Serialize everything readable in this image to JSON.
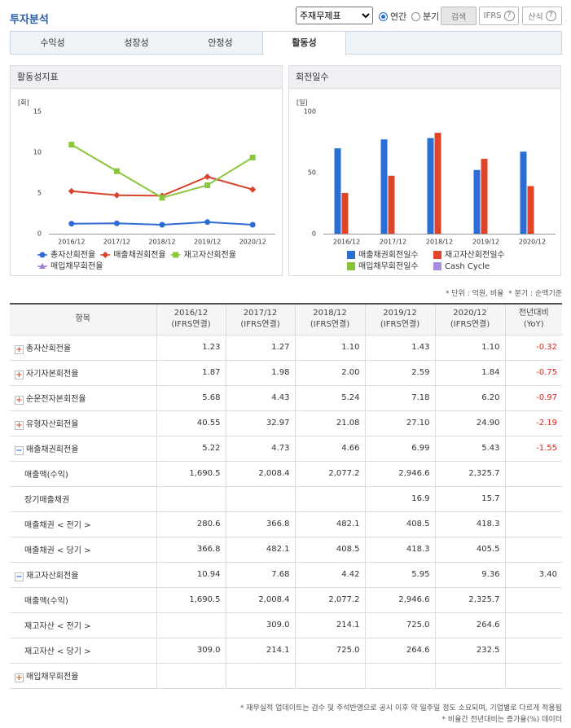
{
  "header": {
    "title": "투자분석",
    "select": "주재무제표",
    "radios": [
      "연간",
      "분기"
    ],
    "buttons": [
      "검색",
      "IFRS",
      "산식"
    ]
  },
  "tabs": {
    "items": [
      "수익성",
      "성장성",
      "안정성",
      "활동성"
    ],
    "active": 3
  },
  "chart_data": [
    {
      "type": "line",
      "title": "활동성지표",
      "unit": "[회]",
      "categories": [
        "2016/12",
        "2017/12",
        "2018/12",
        "2019/12",
        "2020/12"
      ],
      "ylim": [
        0,
        15
      ],
      "yticks": [
        0,
        5,
        10,
        15
      ],
      "grid": false,
      "series": [
        {
          "name": "총자산회전율",
          "color": "#2e6bd3",
          "marker": "circle",
          "values": [
            1.23,
            1.27,
            1.1,
            1.43,
            1.1
          ]
        },
        {
          "name": "매출채권회전율",
          "color": "#d8432b",
          "marker": "diamond",
          "values": [
            5.22,
            4.73,
            4.66,
            6.99,
            5.43
          ]
        },
        {
          "name": "재고자산회전율",
          "color": "#8cc63f",
          "marker": "square",
          "values": [
            10.94,
            7.68,
            4.42,
            5.95,
            9.36
          ]
        },
        {
          "name": "매입채무회전율",
          "color": "#a07fd8",
          "marker": "triangle",
          "values": [
            null,
            null,
            null,
            null,
            null
          ]
        }
      ]
    },
    {
      "type": "bar",
      "title": "회전일수",
      "unit": "[일]",
      "categories": [
        "2016/12",
        "2017/12",
        "2018/12",
        "2019/12",
        "2020/12"
      ],
      "ylim": [
        0,
        100
      ],
      "yticks": [
        0,
        50,
        100
      ],
      "grid": false,
      "series": [
        {
          "name": "매출채권회전일수",
          "color": "#2b6fd6",
          "values": [
            69.9,
            77.2,
            78.3,
            52.2,
            67.2
          ]
        },
        {
          "name": "재고자산회전일수",
          "color": "#e0452a",
          "values": [
            33.4,
            47.5,
            82.6,
            61.3,
            39.0
          ]
        },
        {
          "name": "매입채무회전일수",
          "color": "#86c232",
          "values": [
            null,
            null,
            null,
            null,
            null
          ]
        },
        {
          "name": "Cash Cycle",
          "color": "#a68be0",
          "values": [
            null,
            null,
            null,
            null,
            null
          ]
        }
      ]
    }
  ],
  "notes": [
    "* 단위 : 억원, 비율",
    "* 분기 : 순액기준"
  ],
  "table": {
    "item_header": "항목",
    "columns": [
      {
        "label": "2016/12",
        "sub": "(IFRS연결)"
      },
      {
        "label": "2017/12",
        "sub": "(IFRS연결)"
      },
      {
        "label": "2018/12",
        "sub": "(IFRS연결)"
      },
      {
        "label": "2019/12",
        "sub": "(IFRS연결)"
      },
      {
        "label": "2020/12",
        "sub": "(IFRS연결)"
      },
      {
        "label": "전년대비",
        "sub": "(YoY)"
      }
    ],
    "rows": [
      {
        "label": "총자산회전율",
        "icon": "plus",
        "values": [
          "1.23",
          "1.27",
          "1.10",
          "1.43",
          "1.10"
        ],
        "yoy": "-0.32"
      },
      {
        "label": "자기자본회전율",
        "icon": "plus",
        "values": [
          "1.87",
          "1.98",
          "2.00",
          "2.59",
          "1.84"
        ],
        "yoy": "-0.75"
      },
      {
        "label": "순운전자본회전율",
        "icon": "plus",
        "values": [
          "5.68",
          "4.43",
          "5.24",
          "7.18",
          "6.20"
        ],
        "yoy": "-0.97"
      },
      {
        "label": "유형자산회전율",
        "icon": "plus",
        "values": [
          "40.55",
          "32.97",
          "21.08",
          "27.10",
          "24.90"
        ],
        "yoy": "-2.19"
      },
      {
        "label": "매출채권회전율",
        "icon": "minus",
        "values": [
          "5.22",
          "4.73",
          "4.66",
          "6.99",
          "5.43"
        ],
        "yoy": "-1.55"
      },
      {
        "label": "매출액(수익)",
        "values": [
          "1,690.5",
          "2,008.4",
          "2,077.2",
          "2,946.6",
          "2,325.7"
        ]
      },
      {
        "label": "장기매출채권",
        "values": [
          null,
          null,
          null,
          "16.9",
          "15.7"
        ]
      },
      {
        "label": "매출채권 < 전기 >",
        "values": [
          "280.6",
          "366.8",
          "482.1",
          "408.5",
          "418.3"
        ]
      },
      {
        "label": "매출채권 < 당기 >",
        "values": [
          "366.8",
          "482.1",
          "408.5",
          "418.3",
          "405.5"
        ]
      },
      {
        "label": "재고자산회전율",
        "icon": "minus",
        "values": [
          "10.94",
          "7.68",
          "4.42",
          "5.95",
          "9.36"
        ],
        "yoy": "3.40"
      },
      {
        "label": "매출액(수익)",
        "values": [
          "1,690.5",
          "2,008.4",
          "2,077.2",
          "2,946.6",
          "2,325.7"
        ]
      },
      {
        "label": "재고자산 < 전기 >",
        "values": [
          null,
          "309.0",
          "214.1",
          "725.0",
          "264.6"
        ]
      },
      {
        "label": "재고자산 < 당기 >",
        "values": [
          "309.0",
          "214.1",
          "725.0",
          "264.6",
          "232.5"
        ]
      },
      {
        "label": "매입채무회전율",
        "icon": "plus",
        "values": [
          null,
          null,
          null,
          null,
          null
        ]
      }
    ]
  },
  "footnotes": [
    "* 재무실적 업데이트는 검수 및 주석반영으로 공시 이후 약 일주일 정도 소요되며, 기업별로 다르게 적용됨",
    "* 비율간 전년대비는 증가율(%) 데이터"
  ]
}
